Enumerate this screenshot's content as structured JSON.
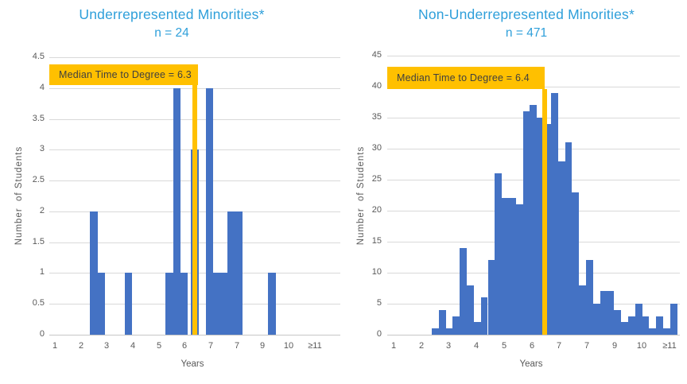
{
  "figure_background": "#FFFFFF",
  "colors": {
    "bar": "#4472C4",
    "median_accent": "#FFC000",
    "title_text": "#2E9FDA",
    "axis_text": "#595959",
    "median_text": "#3F3F3F",
    "gridline": "#D9D9D9"
  },
  "chart_data": [
    {
      "type": "bar",
      "title": "Underrepresented Minorities*",
      "subtitle": "n = 24",
      "n": 24,
      "median_label": "Median Time to Degree = 6.3",
      "median_value": 6.3,
      "xlabel": "Years",
      "ylabel": "Number  of Students",
      "x_tick_labels": [
        "1",
        "2",
        "3",
        "4",
        "5",
        "6",
        "7",
        "7",
        "9",
        "10",
        "≥11"
      ],
      "y_tick_labels": [
        "0",
        "0.5",
        "1",
        "1.5",
        "2",
        "2.5",
        "3",
        "3.5",
        "4",
        "4.5"
      ],
      "ylim": [
        0,
        4.5
      ],
      "grid": true,
      "legend": false,
      "bar_width_years": 0.28,
      "bars": [
        [
          2.36,
          2
        ],
        [
          2.64,
          1
        ],
        [
          3.69,
          1
        ],
        [
          5.27,
          1
        ],
        [
          5.55,
          4
        ],
        [
          5.83,
          1
        ],
        [
          6.25,
          3
        ],
        [
          6.82,
          4
        ],
        [
          7.1,
          1
        ],
        [
          7.38,
          1
        ],
        [
          7.66,
          2
        ],
        [
          7.94,
          2
        ],
        [
          9.22,
          1
        ]
      ]
    },
    {
      "type": "bar",
      "title": "Non-Underrepresented Minorities*",
      "subtitle": "n = 471",
      "n": 471,
      "median_label": "Median Time to Degree = 6.4",
      "median_value": 6.4,
      "xlabel": "Years",
      "ylabel": "Number  of Students",
      "x_tick_labels": [
        "1",
        "2",
        "3",
        "4",
        "5",
        "6",
        "7",
        "7",
        "9",
        "10",
        "≥11"
      ],
      "y_tick_labels": [
        "0",
        "5",
        "10",
        "15",
        "20",
        "25",
        "30",
        "35",
        "40",
        "45"
      ],
      "ylim": [
        0,
        45
      ],
      "grid": true,
      "legend": false,
      "bar_width_years": 0.2543,
      "bars": [
        [
          2.38,
          1
        ],
        [
          2.634,
          4
        ],
        [
          2.889,
          1
        ],
        [
          3.143,
          3
        ],
        [
          3.397,
          14
        ],
        [
          3.652,
          8
        ],
        [
          3.906,
          2
        ],
        [
          4.16,
          6
        ],
        [
          4.415,
          12
        ],
        [
          4.669,
          26
        ],
        [
          4.923,
          22
        ],
        [
          5.178,
          22
        ],
        [
          5.432,
          21
        ],
        [
          5.686,
          36
        ],
        [
          5.941,
          37
        ],
        [
          6.195,
          35
        ],
        [
          6.449,
          34
        ],
        [
          6.704,
          39
        ],
        [
          6.958,
          28
        ],
        [
          7.212,
          31
        ],
        [
          7.467,
          23
        ],
        [
          7.721,
          8
        ],
        [
          7.975,
          12
        ],
        [
          8.23,
          5
        ],
        [
          8.484,
          7
        ],
        [
          8.738,
          7
        ],
        [
          8.993,
          4
        ],
        [
          9.247,
          2
        ],
        [
          9.501,
          3
        ],
        [
          9.756,
          5
        ],
        [
          10.01,
          3
        ],
        [
          10.264,
          1
        ],
        [
          10.519,
          3
        ],
        [
          10.773,
          1
        ],
        [
          11.027,
          5
        ]
      ]
    }
  ]
}
